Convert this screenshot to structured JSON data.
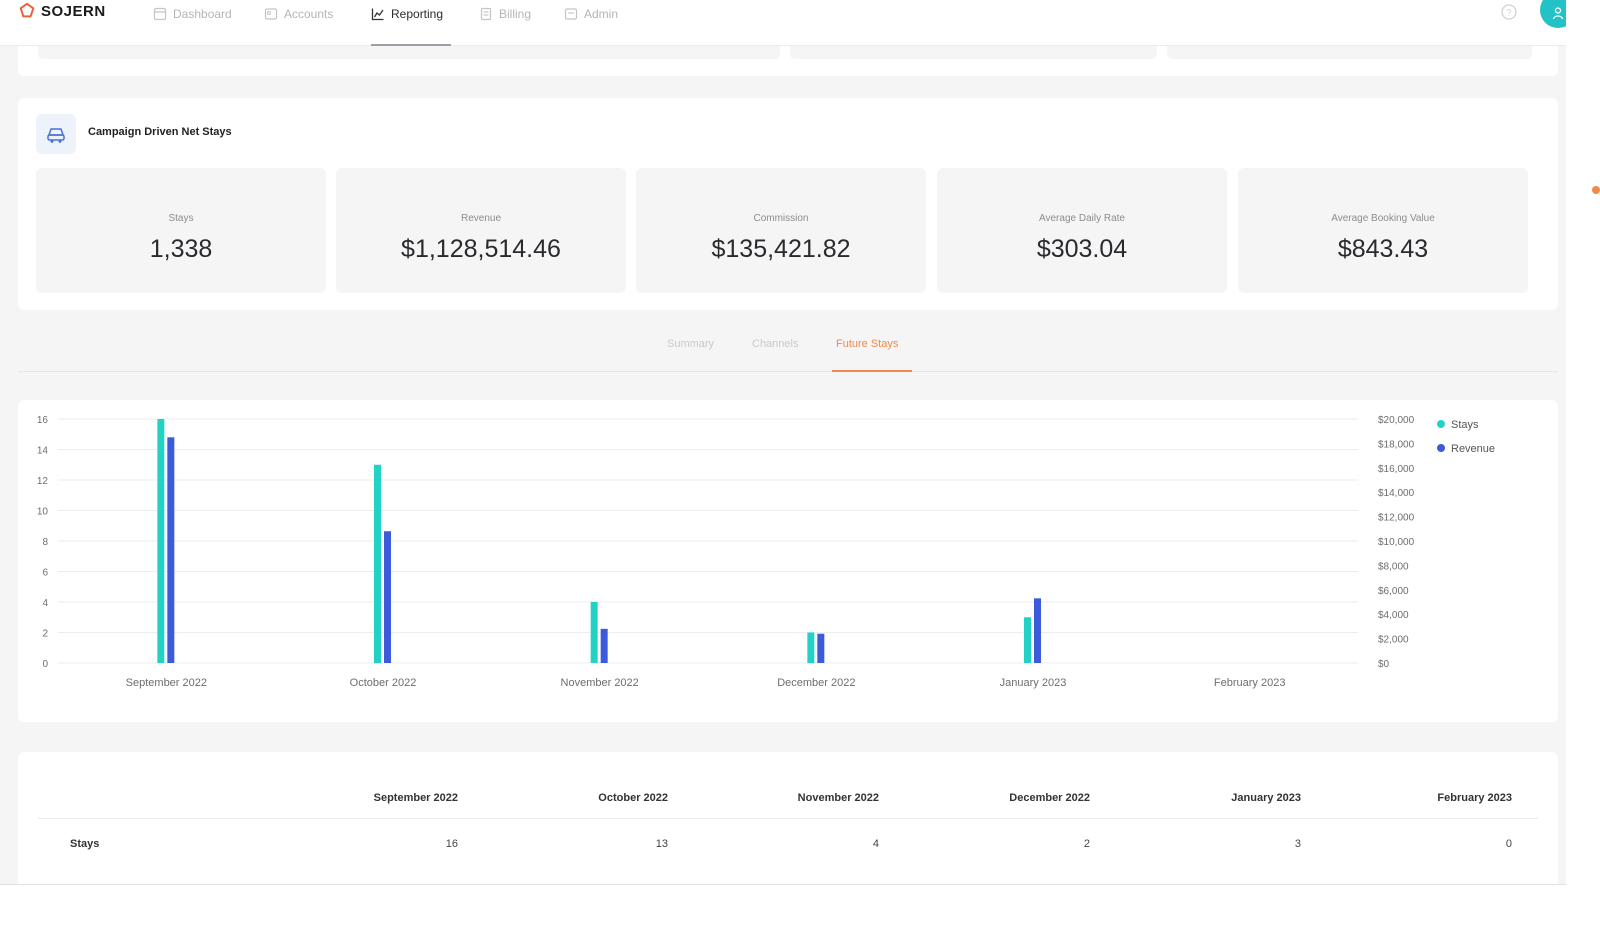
{
  "brand": {
    "name": "SOJERN",
    "accent": "#e8623a"
  },
  "nav": {
    "items": [
      {
        "label": "Dashboard",
        "icon": "dashboard-icon",
        "active": false
      },
      {
        "label": "Accounts",
        "icon": "accounts-icon",
        "active": false
      },
      {
        "label": "Reporting",
        "icon": "chart-line-icon",
        "active": true
      },
      {
        "label": "Billing",
        "icon": "billing-icon",
        "active": false
      },
      {
        "label": "Admin",
        "icon": "admin-icon",
        "active": false
      }
    ],
    "help_icon": "help-icon",
    "avatar_icon": "user-icon",
    "avatar_color": "#22c2c6"
  },
  "campaign": {
    "title": "Campaign Driven Net Stays",
    "icon": "car-icon",
    "metrics": [
      {
        "label": "Stays",
        "value": "1,338"
      },
      {
        "label": "Revenue",
        "value": "$1,128,514.46"
      },
      {
        "label": "Commission",
        "value": "$135,421.82"
      },
      {
        "label": "Average Daily Rate",
        "value": "$303.04"
      },
      {
        "label": "Average Booking Value",
        "value": "$843.43"
      }
    ]
  },
  "tabs": {
    "items": [
      {
        "label": "Summary",
        "active": false
      },
      {
        "label": "Channels",
        "active": false
      },
      {
        "label": "Future Stays",
        "active": true
      }
    ],
    "active_color": "#f08a4b"
  },
  "chart_data": {
    "type": "bar",
    "categories": [
      "September 2022",
      "October 2022",
      "November 2022",
      "December 2022",
      "January 2023",
      "February 2023"
    ],
    "series": [
      {
        "name": "Stays",
        "axis": "left",
        "color": "#22d3c5",
        "values": [
          16,
          13,
          4,
          2,
          3,
          0
        ]
      },
      {
        "name": "Revenue",
        "axis": "right",
        "color": "#3b5bdb",
        "values": [
          18500,
          10800,
          2800,
          2400,
          5300,
          0
        ]
      }
    ],
    "y_left": {
      "ylim": [
        0,
        16
      ],
      "ticks": [
        "0",
        "2",
        "4",
        "6",
        "8",
        "10",
        "12",
        "14",
        "16"
      ]
    },
    "y_right": {
      "ylim": [
        0,
        20000
      ],
      "ticks": [
        "$0",
        "$2,000",
        "$4,000",
        "$6,000",
        "$8,000",
        "$10,000",
        "$12,000",
        "$14,000",
        "$16,000",
        "$18,000",
        "$20,000"
      ]
    },
    "grid": true,
    "legend": "top-right"
  },
  "table": {
    "columns": [
      "September 2022",
      "October 2022",
      "November 2022",
      "December 2022",
      "January 2023",
      "February 2023"
    ],
    "rows": [
      {
        "label": "Stays",
        "values": [
          "16",
          "13",
          "4",
          "2",
          "3",
          "0"
        ]
      }
    ]
  }
}
